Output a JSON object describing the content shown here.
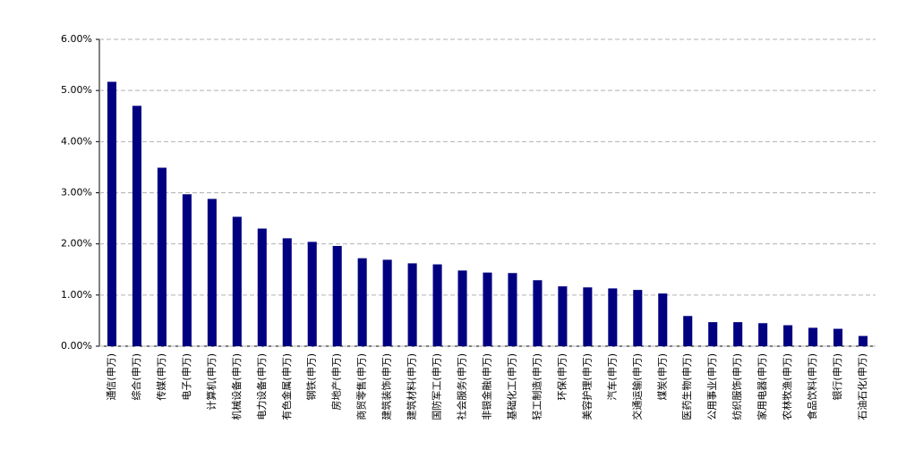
{
  "chart_data": {
    "type": "bar",
    "categories": [
      "通信(申万)",
      "综合(申万)",
      "传媒(申万)",
      "电子(申万)",
      "计算机(申万)",
      "机械设备(申万)",
      "电力设备(申万)",
      "有色金属(申万)",
      "钢铁(申万)",
      "房地产(申万)",
      "商贸零售(申万)",
      "建筑装饰(申万)",
      "建筑材料(申万)",
      "国防军工(申万)",
      "社会服务(申万)",
      "非银金融(申万)",
      "基础化工(申万)",
      "轻工制造(申万)",
      "环保(申万)",
      "美容护理(申万)",
      "汽车(申万)",
      "交通运输(申万)",
      "煤炭(申万)",
      "医药生物(申万)",
      "公用事业(申万)",
      "纺织服饰(申万)",
      "家用电器(申万)",
      "农林牧渔(申万)",
      "食品饮料(申万)",
      "银行(申万)",
      "石油石化(申万)"
    ],
    "values": [
      5.17,
      4.7,
      3.49,
      2.97,
      2.88,
      2.53,
      2.3,
      2.11,
      2.04,
      1.96,
      1.72,
      1.69,
      1.62,
      1.6,
      1.48,
      1.44,
      1.43,
      1.29,
      1.17,
      1.15,
      1.13,
      1.1,
      1.03,
      0.59,
      0.47,
      0.47,
      0.45,
      0.41,
      0.36,
      0.34,
      0.2
    ],
    "color": "#000080",
    "ylim": [
      0,
      6
    ],
    "yticks": [
      {
        "value": 0,
        "label": "0.00%"
      },
      {
        "value": 1,
        "label": "1.00%"
      },
      {
        "value": 2,
        "label": "2.00%"
      },
      {
        "value": 3,
        "label": "3.00%"
      },
      {
        "value": 4,
        "label": "4.00%"
      },
      {
        "value": 5,
        "label": "5.00%"
      },
      {
        "value": 6,
        "label": "6.00%"
      }
    ],
    "grid": true
  }
}
